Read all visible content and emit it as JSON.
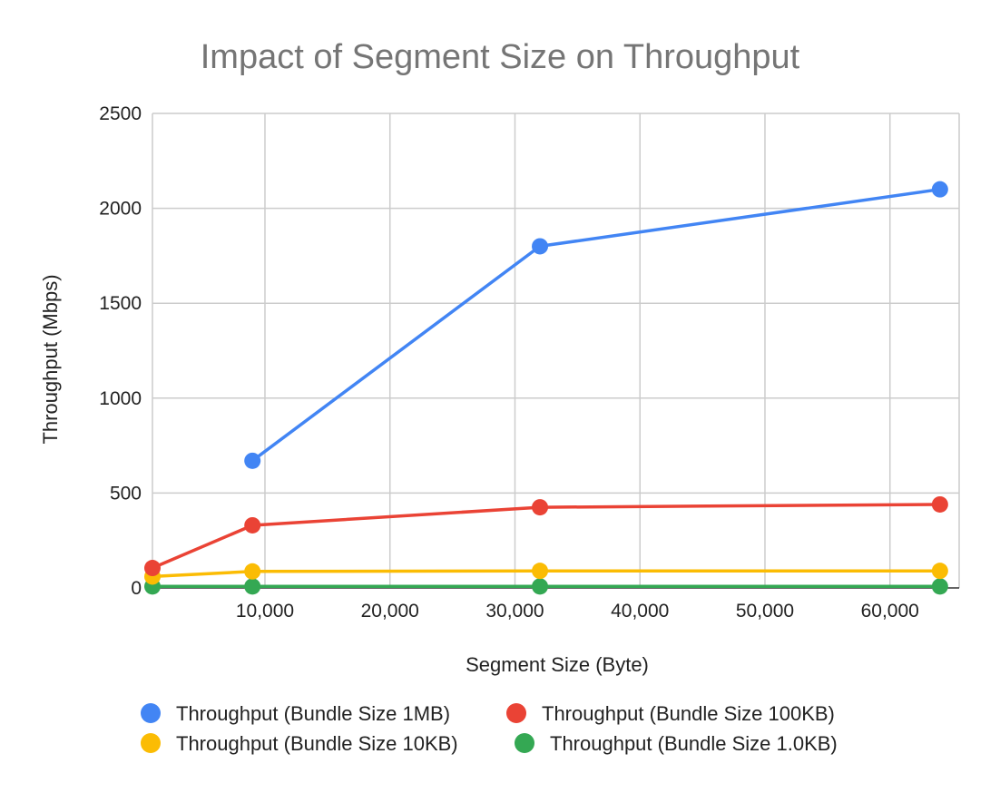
{
  "chart_data": {
    "type": "line",
    "title": "Impact of Segment Size on Throughput",
    "xlabel": "Segment Size (Byte)",
    "ylabel": "Throughput (Mbps)",
    "xlim": [
      1000,
      65536
    ],
    "ylim": [
      0,
      2500
    ],
    "x_ticks": [
      10000,
      20000,
      30000,
      40000,
      50000,
      60000
    ],
    "x_tick_labels": [
      "10,000",
      "20,000",
      "30,000",
      "40,000",
      "50,000",
      "60,000"
    ],
    "y_ticks": [
      0,
      500,
      1000,
      1500,
      2000,
      2500
    ],
    "y_tick_labels": [
      "0",
      "500",
      "1000",
      "1500",
      "2000",
      "2500"
    ],
    "grid": true,
    "legend_position": "bottom",
    "series": [
      {
        "name": "Throughput (Bundle Size 1MB)",
        "color": "#4285f4",
        "x": [
          9000,
          32000,
          64000
        ],
        "values": [
          670,
          1800,
          2100
        ]
      },
      {
        "name": "Throughput (Bundle Size 100KB)",
        "color": "#ea4335",
        "x": [
          1000,
          9000,
          32000,
          64000
        ],
        "values": [
          105,
          330,
          425,
          440
        ]
      },
      {
        "name": "Throughput (Bundle Size 10KB)",
        "color": "#fbbc04",
        "x": [
          1000,
          9000,
          32000,
          64000
        ],
        "values": [
          60,
          87,
          90,
          90
        ]
      },
      {
        "name": "Throughput (Bundle Size 1.0KB)",
        "color": "#34a853",
        "x": [
          1000,
          9000,
          32000,
          64000
        ],
        "values": [
          8,
          8,
          8,
          8
        ]
      }
    ]
  }
}
